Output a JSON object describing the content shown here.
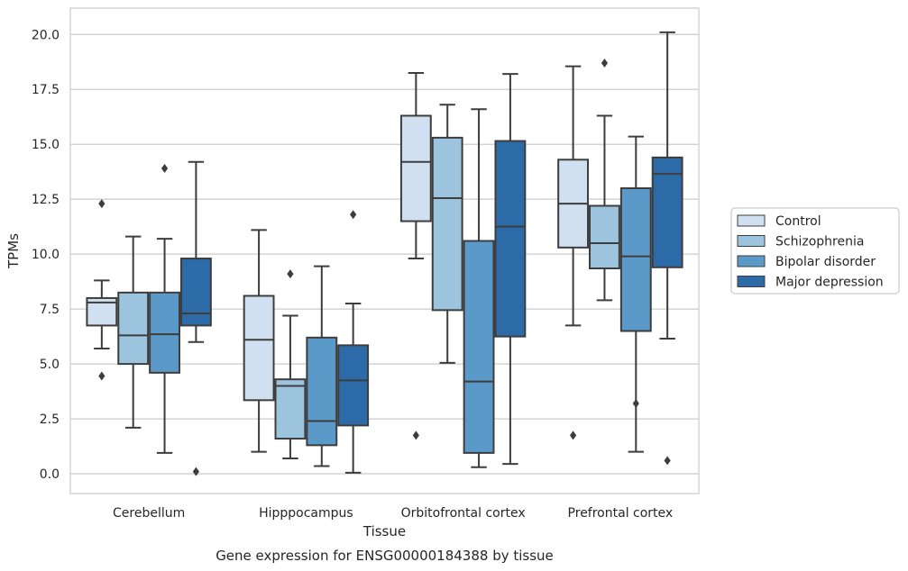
{
  "chart_data": {
    "type": "boxplot",
    "xlabel": "Tissue",
    "ylabel": "TPMs",
    "caption": "Gene expression for ENSG00000184388 by tissue",
    "ylim": [
      -0.9,
      21.2
    ],
    "yticks": [
      "0.0",
      "2.5",
      "5.0",
      "7.5",
      "10.0",
      "12.5",
      "15.0",
      "17.5",
      "20.0"
    ],
    "grid": "horizontal",
    "legend_position": "right",
    "categories": [
      "Cerebellum",
      "Hipppocampus",
      "Orbitofrontal cortex",
      "Prefrontal cortex"
    ],
    "series": [
      {
        "name": "Control",
        "color": "#d0e0f0",
        "boxes": [
          {
            "whislo": 5.7,
            "q1": 6.75,
            "med": 7.8,
            "q3": 8.0,
            "whishi": 8.8,
            "fliers": [
              12.3,
              4.45
            ]
          },
          {
            "whislo": 1.0,
            "q1": 3.35,
            "med": 6.1,
            "q3": 8.1,
            "whishi": 11.1,
            "fliers": []
          },
          {
            "whislo": 9.8,
            "q1": 11.5,
            "med": 14.2,
            "q3": 16.3,
            "whishi": 18.25,
            "fliers": [
              1.75
            ]
          },
          {
            "whislo": 6.75,
            "q1": 10.3,
            "med": 12.3,
            "q3": 14.3,
            "whishi": 18.55,
            "fliers": [
              1.75
            ]
          }
        ]
      },
      {
        "name": "Schizophrenia",
        "color": "#9cc4df",
        "boxes": [
          {
            "whislo": 2.1,
            "q1": 5.0,
            "med": 6.3,
            "q3": 8.25,
            "whishi": 10.8,
            "fliers": []
          },
          {
            "whislo": 0.7,
            "q1": 1.6,
            "med": 4.0,
            "q3": 4.3,
            "whishi": 7.2,
            "fliers": [
              9.1
            ]
          },
          {
            "whislo": 5.05,
            "q1": 7.45,
            "med": 12.55,
            "q3": 15.3,
            "whishi": 16.8,
            "fliers": []
          },
          {
            "whislo": 7.9,
            "q1": 9.35,
            "med": 10.5,
            "q3": 12.2,
            "whishi": 16.3,
            "fliers": [
              18.7
            ]
          }
        ]
      },
      {
        "name": "Bipolar disorder",
        "color": "#5b9ac8",
        "boxes": [
          {
            "whislo": 0.95,
            "q1": 4.6,
            "med": 6.35,
            "q3": 8.25,
            "whishi": 10.7,
            "fliers": [
              13.9
            ]
          },
          {
            "whislo": 0.35,
            "q1": 1.3,
            "med": 2.4,
            "q3": 6.2,
            "whishi": 9.45,
            "fliers": []
          },
          {
            "whislo": 0.3,
            "q1": 0.95,
            "med": 4.2,
            "q3": 10.6,
            "whishi": 16.6,
            "fliers": []
          },
          {
            "whislo": 1.0,
            "q1": 6.5,
            "med": 9.9,
            "q3": 13.0,
            "whishi": 15.35,
            "fliers": [
              3.2
            ]
          }
        ]
      },
      {
        "name": "Major depression",
        "color": "#2c6ba8",
        "boxes": [
          {
            "whislo": 6.0,
            "q1": 6.75,
            "med": 7.3,
            "q3": 9.8,
            "whishi": 14.2,
            "fliers": [
              0.1
            ]
          },
          {
            "whislo": 0.05,
            "q1": 2.2,
            "med": 4.25,
            "q3": 5.85,
            "whishi": 7.75,
            "fliers": [
              11.8
            ]
          },
          {
            "whislo": 0.45,
            "q1": 6.25,
            "med": 11.25,
            "q3": 15.15,
            "whishi": 18.2,
            "fliers": []
          },
          {
            "whislo": 6.15,
            "q1": 9.4,
            "med": 13.65,
            "q3": 14.4,
            "whishi": 20.1,
            "fliers": [
              0.6
            ]
          }
        ]
      }
    ]
  }
}
